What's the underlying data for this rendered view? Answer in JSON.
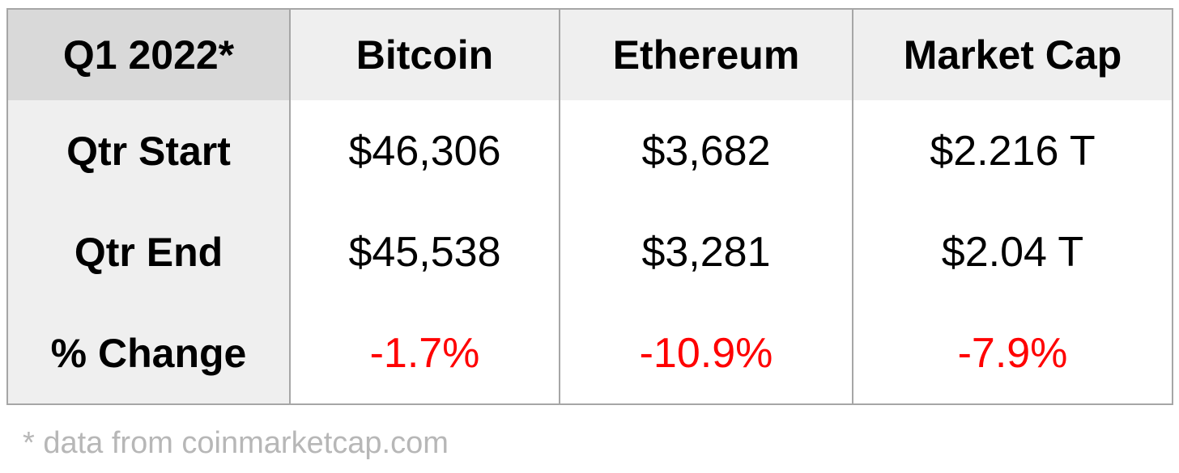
{
  "table": {
    "header": [
      "Q1 2022*",
      "Bitcoin",
      "Ethereum",
      "Market Cap"
    ],
    "rows": [
      [
        "Qtr Start",
        "$46,306",
        "$3,682",
        "$2.216 T"
      ],
      [
        "Qtr End",
        "$45,538",
        "$3,281",
        "$2.04 T"
      ],
      [
        "% Change",
        "-1.7%",
        "-10.9%",
        "-7.9%"
      ]
    ]
  },
  "footnote": "* data from coinmarketcap.com"
}
